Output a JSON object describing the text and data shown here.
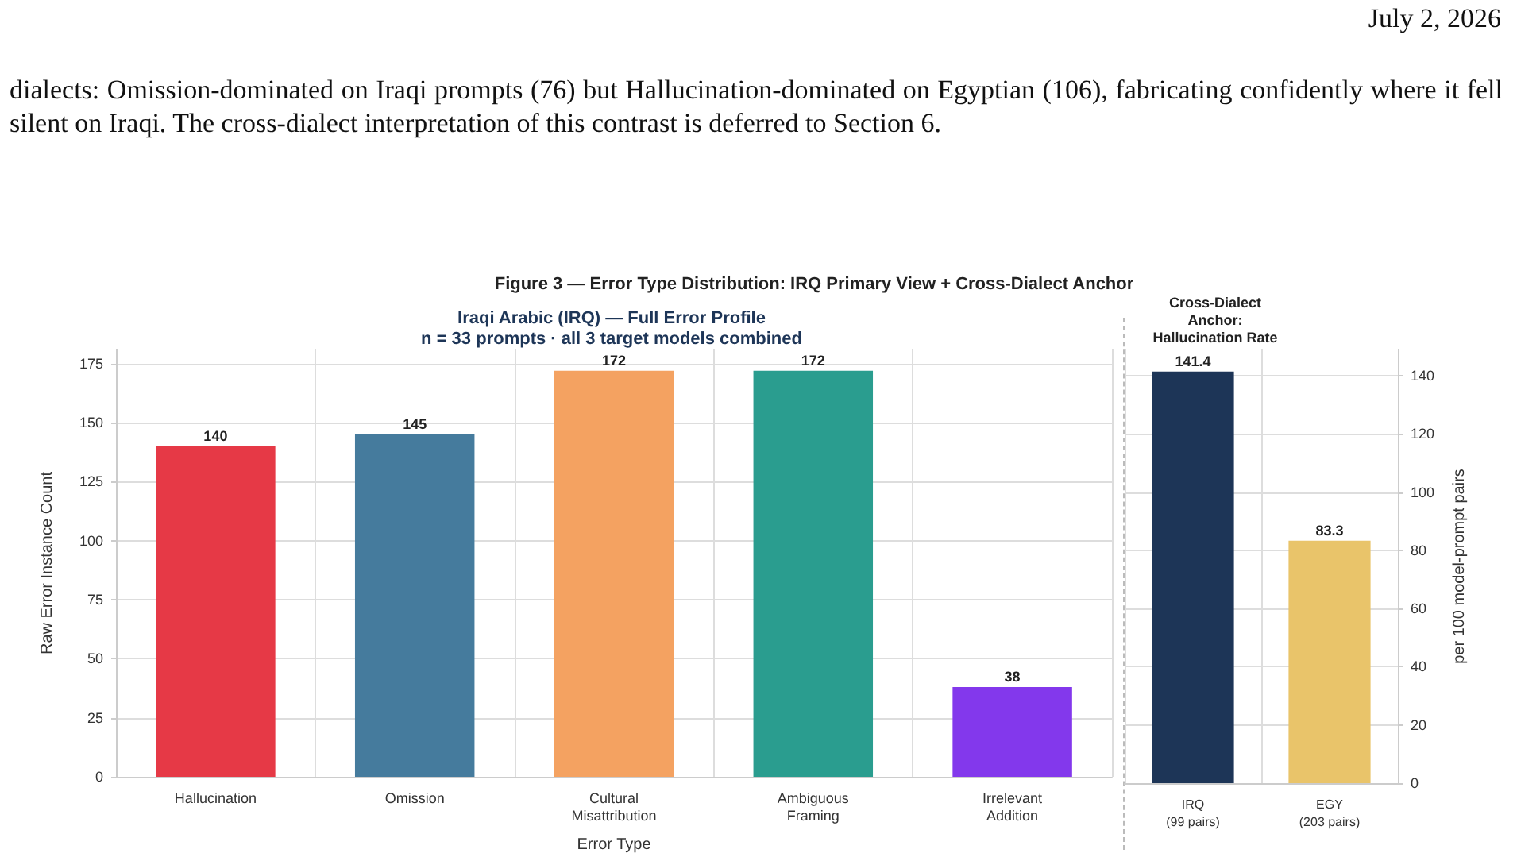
{
  "chart_data": [
    {
      "type": "bar",
      "title": "Iraqi Arabic (IRQ) — Full Error Profile",
      "subtitle": "n = 33 prompts · all 3 target models combined",
      "xlabel": "Error Type",
      "ylabel": "Raw Error Instance Count",
      "annotations": [
        "July 2, 2026",
        "dialects: Omission-dominated on Iraqi prompts (76) but Hallucination-dominated on Egyptian (106), fabricating confidently where it fell silent on Iraqi. The cross-dialect interpretation of this contrast is deferred to Section 6.",
        "Figure 3 — Error Type Distribution: IRQ Primary View + Cross-Dialect Anchor"
      ],
      "categories": [
        "Hallucination",
        "Omission",
        "Cultural\nMisattribution",
        "Ambiguous\nFraming",
        "Irrelevant\nAddition"
      ],
      "values": [
        140,
        145,
        172,
        172,
        38
      ],
      "colors": [
        "#e63946",
        "#457b9d",
        "#f4a261",
        "#2a9d8f",
        "#8338ec"
      ],
      "ylim": [
        0,
        181
      ],
      "yticks": [
        0,
        25,
        50,
        75,
        100,
        125,
        150,
        175
      ],
      "grid": true,
      "data_labels": true
    },
    {
      "type": "bar",
      "title": "Cross-Dialect\nAnchor:\nHallucination Rate",
      "ylabel": "per 100 model-prompt pairs",
      "categories": [
        "IRQ\n(99 pairs)",
        "EGY\n(203 pairs)"
      ],
      "values": [
        141.4,
        83.3
      ],
      "colors": [
        "#1d3557",
        "#e9c46a"
      ],
      "ylim": [
        0,
        149
      ],
      "yticks": [
        0,
        20,
        40,
        60,
        80,
        100,
        120,
        140
      ],
      "grid": true,
      "data_labels": true
    }
  ]
}
